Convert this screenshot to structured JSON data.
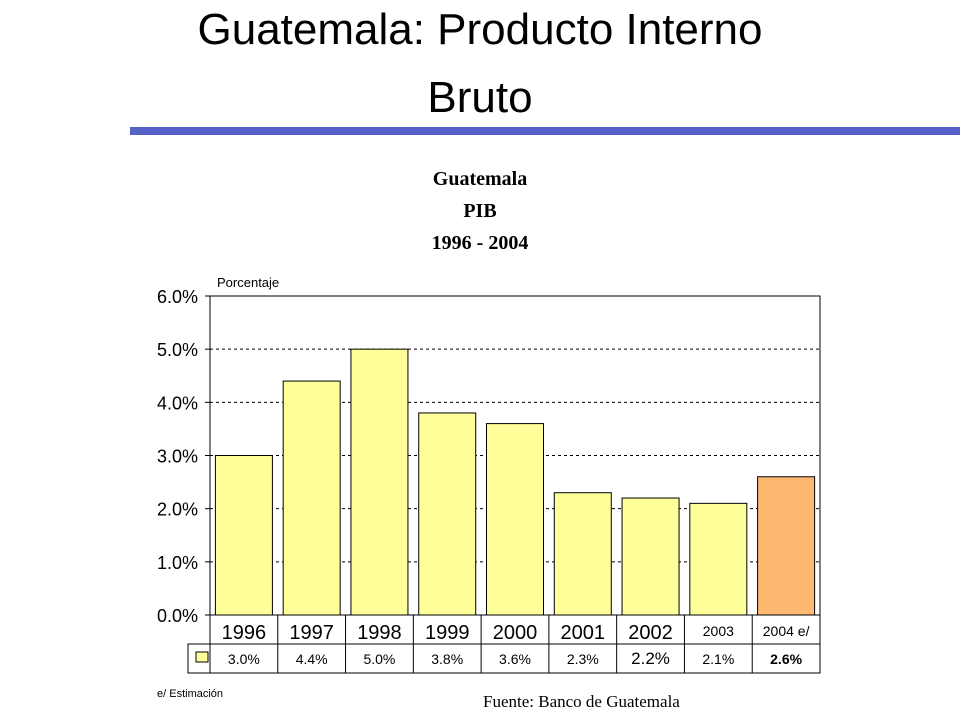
{
  "title": {
    "line1": "Guatemala:  Producto Interno",
    "line2": "Bruto"
  },
  "colors": {
    "title_rule": "#5662c8",
    "bar_default": "#ffff99",
    "bar_highlight": "#ffb870",
    "gridline": "#000000"
  },
  "chart_data": {
    "type": "bar",
    "title": "Guatemala",
    "subtitle": [
      "PIB",
      "1996 - 2004"
    ],
    "ylabel": "Porcentaje",
    "xlabel": "",
    "categories": [
      "1996",
      "1997",
      "1998",
      "1999",
      "2000",
      "2001",
      "2002",
      "2003",
      "2004 e/"
    ],
    "series": [
      {
        "values": [
          3.0,
          4.4,
          5.0,
          3.8,
          3.6,
          2.3,
          2.2,
          2.1,
          2.6
        ],
        "labels": [
          "3.0%",
          "4.4%",
          "5.0%",
          "3.8%",
          "3.6%",
          "2.3%",
          "2.2%",
          "2.1%",
          "2.6%"
        ]
      }
    ],
    "highlight_index": 8,
    "ylim": [
      0,
      6
    ],
    "yticks": [
      0,
      1,
      2,
      3,
      4,
      5,
      6
    ],
    "ytick_labels": [
      "0.0%",
      "1.0%",
      "2.0%",
      "3.0%",
      "4.0%",
      "5.0%",
      "6.0%"
    ],
    "grid": "horizontal dashed",
    "legend": "data table below chart"
  },
  "footnote": "e/ Estimación",
  "source": "Fuente:  Banco de Guatemala"
}
